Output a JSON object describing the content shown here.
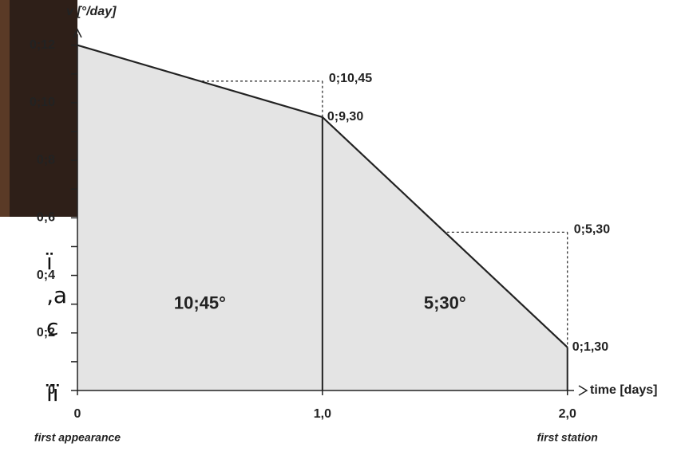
{
  "chart_data": {
    "type": "area",
    "x": [
      0,
      1,
      2
    ],
    "values": [
      12,
      9.5,
      1.5
    ],
    "value_labels": [
      null,
      "0;9,30",
      "0;1,30"
    ],
    "xlim": [
      0,
      2.04
    ],
    "ylim": [
      0,
      12.6
    ],
    "xticks": [
      0,
      {
        "value": 1,
        "label": "1,0"
      },
      {
        "value": 2,
        "label": "2,0"
      }
    ],
    "yticks": [
      0,
      {
        "value": 2,
        "label": "0;2"
      },
      {
        "value": 4,
        "label": "0;4"
      },
      {
        "value": 6,
        "label": "0;6"
      },
      {
        "value": 8,
        "label": "0;8"
      },
      {
        "value": 10,
        "label": "0;10"
      },
      {
        "value": 12,
        "label": "0;12"
      }
    ],
    "yminor": [
      1,
      3,
      5,
      7,
      9,
      11
    ],
    "ylabel": "v [°/day]",
    "xlabel": "time [days]",
    "x_annotations": [
      "first appearance",
      "first station"
    ],
    "averages": [
      {
        "x": [
          0,
          1
        ],
        "value": 10.75,
        "label": "0;10,45"
      },
      {
        "x": [
          1,
          2
        ],
        "value": 5.5,
        "label": "0;5,30"
      }
    ],
    "area_labels": [
      "10;45°",
      "5;30°"
    ],
    "color": "#e4e4e4",
    "background_fragments": [
      "ï",
      "‚a",
      "c",
      "ïï"
    ]
  }
}
